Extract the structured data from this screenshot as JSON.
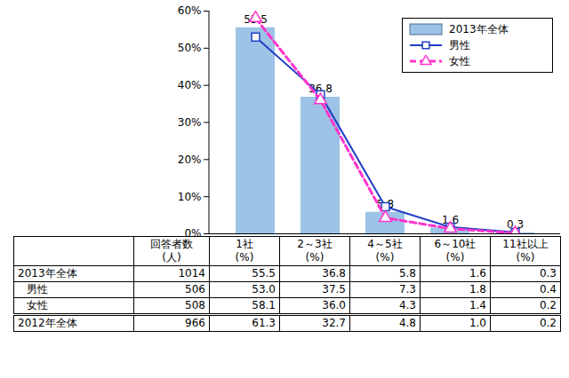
{
  "chart_data": {
    "type": "bar",
    "categories": [
      "1社",
      "2～3社",
      "4～5社",
      "6～10社",
      "11社以上"
    ],
    "series": [
      {
        "name": "2013年全体",
        "type": "bar",
        "color": "#9dc3e6",
        "values": [
          55.5,
          36.8,
          5.8,
          1.6,
          0.3
        ],
        "data_labels": true
      },
      {
        "name": "男性",
        "type": "line",
        "color": "#1f3fc4",
        "marker": "square",
        "line_style": "solid",
        "values": [
          53.0,
          37.5,
          7.3,
          1.8,
          0.4
        ]
      },
      {
        "name": "女性",
        "type": "line",
        "color": "#ff33cc",
        "marker": "triangle",
        "line_style": "dashed",
        "values": [
          58.1,
          36.0,
          4.3,
          1.4,
          0.2
        ]
      }
    ],
    "ylim": [
      0,
      60
    ],
    "yticks": [
      {
        "value": 0,
        "label": "0%"
      },
      {
        "value": 10,
        "label": "10%"
      },
      {
        "value": 20,
        "label": "20%"
      },
      {
        "value": 30,
        "label": "30%"
      },
      {
        "value": 40,
        "label": "40%"
      },
      {
        "value": 50,
        "label": "50%"
      },
      {
        "value": 60,
        "label": "60%"
      }
    ],
    "grid": false,
    "legend": "top-right",
    "tick_labels": "y"
  },
  "table": {
    "header": [
      [],
      [
        "回答者数",
        "(人)"
      ],
      [
        "1社",
        "(%)"
      ],
      [
        "2～3社",
        "(%)"
      ],
      [
        "4～5社",
        "(%)"
      ],
      [
        "6～10社",
        "(%)"
      ],
      [
        "11社以上",
        "(%)"
      ]
    ],
    "sections": [
      [
        [
          "2013年全体",
          "1014",
          "55.5",
          "36.8",
          "5.8",
          "1.6",
          "0.3"
        ],
        [
          "男性",
          "506",
          "53.0",
          "37.5",
          "7.3",
          "1.8",
          "0.4"
        ],
        [
          "女性",
          "508",
          "58.1",
          "36.0",
          "4.3",
          "1.4",
          "0.2"
        ]
      ],
      [
        [
          "2012年全体",
          "966",
          "61.3",
          "32.7",
          "4.8",
          "1.0",
          "0.2"
        ]
      ]
    ]
  }
}
